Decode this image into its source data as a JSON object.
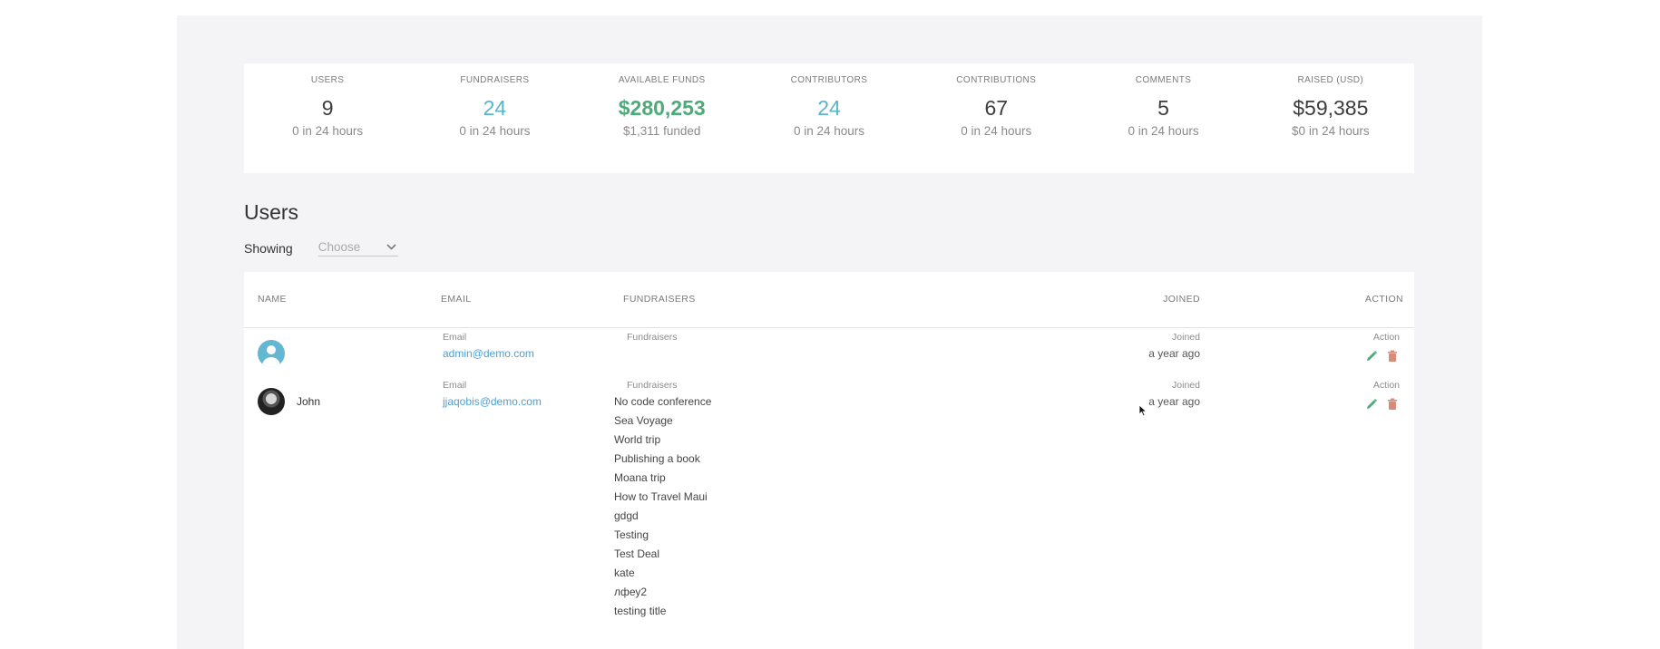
{
  "stats": [
    {
      "label": "USERS",
      "value": "9",
      "sub": "0 in 24 hours",
      "color": "#3d3d3d"
    },
    {
      "label": "FUNDRAISERS",
      "value": "24",
      "sub": "0 in 24 hours",
      "color": "#5ab4cc"
    },
    {
      "label": "AVAILABLE FUNDS",
      "value": "$280,253",
      "sub": "$1,311 funded",
      "color": "#4dab7a"
    },
    {
      "label": "CONTRIBUTORS",
      "value": "24",
      "sub": "0 in 24 hours",
      "color": "#5ab4cc"
    },
    {
      "label": "CONTRIBUTIONS",
      "value": "67",
      "sub": "0 in 24 hours",
      "color": "#3d3d3d"
    },
    {
      "label": "COMMENTS",
      "value": "5",
      "sub": "0 in 24 hours",
      "color": "#3d3d3d"
    },
    {
      "label": "RAISED (USD)",
      "value": "$59,385",
      "sub": "$0 in 24 hours",
      "color": "#3d3d3d"
    }
  ],
  "users_section": {
    "title": "Users",
    "showing_label": "Showing",
    "select_placeholder": "Choose"
  },
  "table": {
    "headers": {
      "name": "NAME",
      "email": "EMAIL",
      "fundraisers": "FUNDRAISERS",
      "joined": "JOINED",
      "action": "ACTION"
    },
    "mini_labels": {
      "email": "Email",
      "fundraisers": "Fundraisers",
      "joined": "Joined",
      "action": "Action"
    },
    "rows": [
      {
        "name": "",
        "email": "admin@demo.com",
        "joined": "a year ago",
        "fundraisers": []
      },
      {
        "name": "John",
        "email": "jjaqobis@demo.com",
        "joined": "a year ago",
        "fundraisers": [
          "No code conference",
          "Sea Voyage",
          "World trip",
          "Publishing a book",
          "Moana trip",
          "How to Travel Maui",
          "gdgd",
          "Testing",
          "Test Deal",
          "kate",
          "лфеу2",
          "testing title"
        ]
      }
    ]
  },
  "colors": {
    "accent_blue": "#5ab4cc",
    "accent_green": "#4dab7a",
    "link": "#4f9fd4",
    "delete": "#d98b7a"
  }
}
